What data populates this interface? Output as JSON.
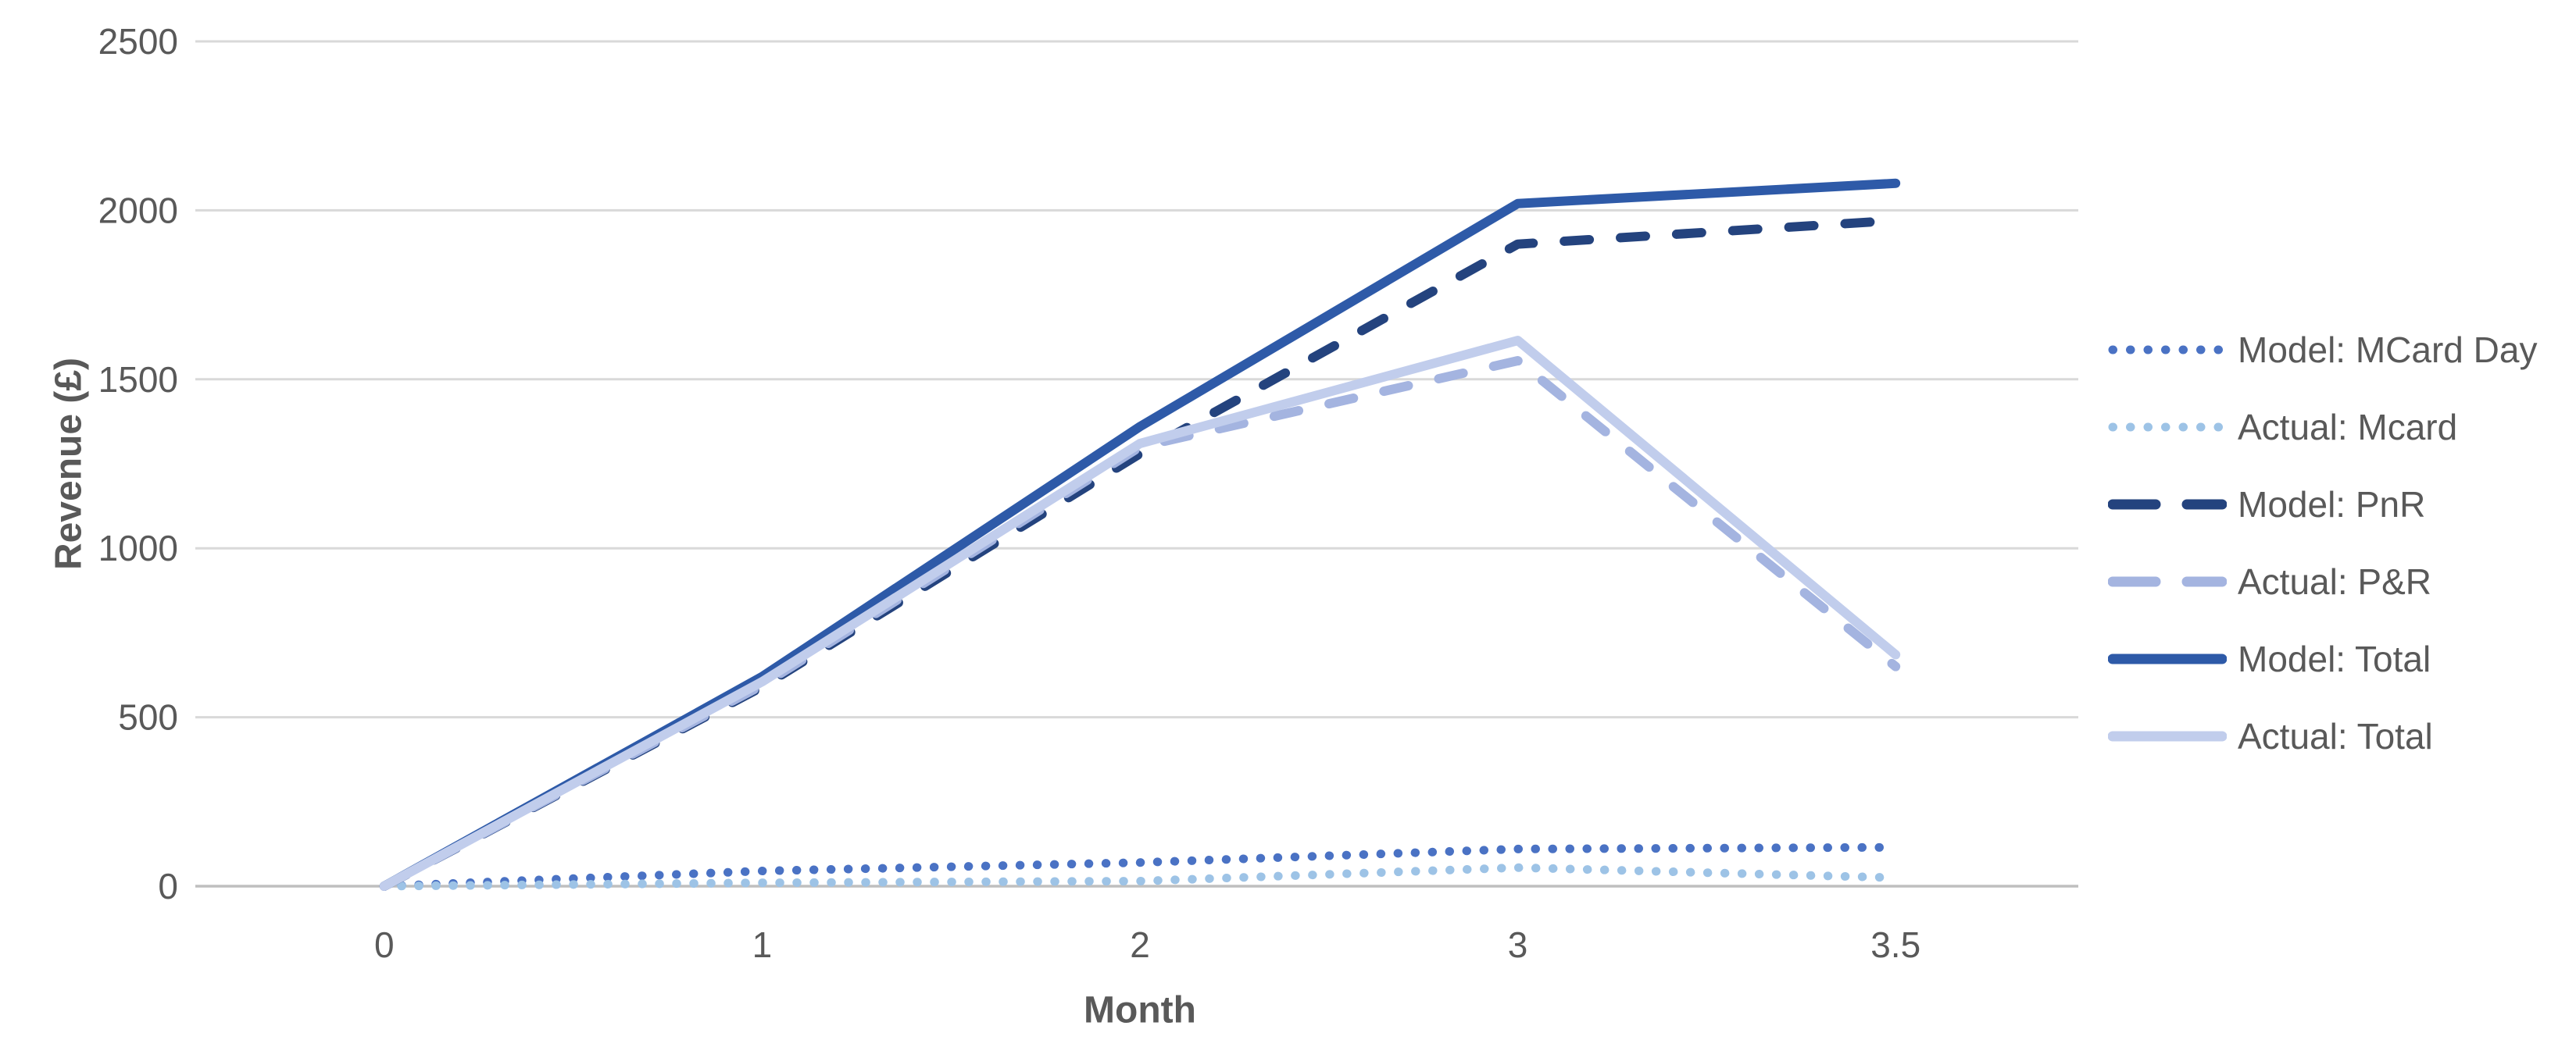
{
  "chart_data": {
    "type": "line",
    "title": "",
    "xlabel": "Month",
    "ylabel": "Revenue (£)",
    "x_axis_type": "category",
    "x_categories": [
      "0",
      "1",
      "2",
      "3",
      "3.5"
    ],
    "y_ticks": [
      2500,
      2000,
      1500,
      1000,
      500,
      0
    ],
    "ylim": [
      0,
      2500
    ],
    "grid": "horizontal",
    "legend_position": "right",
    "colors": {
      "axis_text": "#595959",
      "gridline": "#d9d9d9",
      "zero_axis_line": "#bfbfbf",
      "background": "#ffffff"
    },
    "series": [
      {
        "name": "Model: MCard Day",
        "style": "dotted",
        "color": "#4a72c4",
        "values": [
          0,
          45,
          70,
          110,
          115
        ]
      },
      {
        "name": "Actual: Mcard",
        "style": "dotted",
        "color": "#9dc3e6",
        "values": [
          0,
          10,
          15,
          55,
          25
        ]
      },
      {
        "name": "Model: PnR",
        "style": "dashed",
        "color": "#24437e",
        "values": [
          0,
          590,
          1280,
          1900,
          1970
        ]
      },
      {
        "name": "Actual: P&R",
        "style": "dashed",
        "color": "#a4b4e0",
        "values": [
          0,
          595,
          1300,
          1555,
          650
        ]
      },
      {
        "name": "Model: Total",
        "style": "solid",
        "color": "#2e5aa8",
        "values": [
          0,
          620,
          1360,
          2020,
          2080
        ]
      },
      {
        "name": "Actual: Total",
        "style": "solid",
        "color": "#c1cdec",
        "values": [
          0,
          605,
          1310,
          1615,
          685
        ]
      }
    ]
  }
}
